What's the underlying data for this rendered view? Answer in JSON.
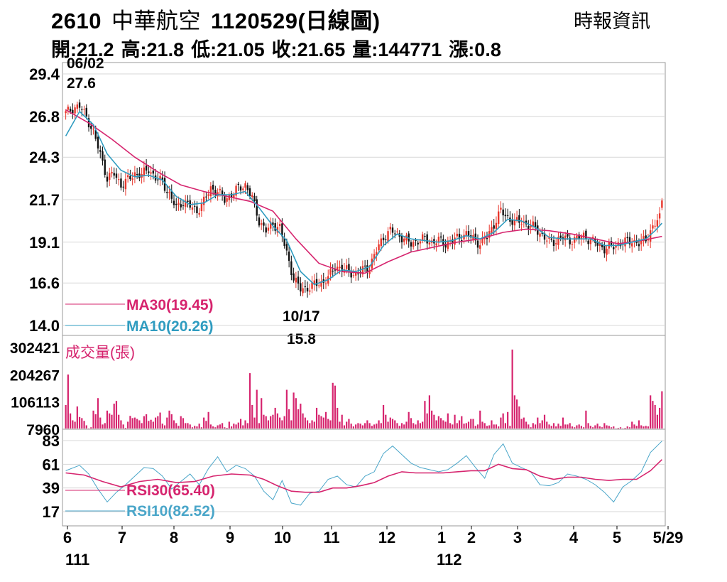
{
  "header": {
    "stock_code": "2610",
    "stock_name": "中華航空",
    "date_label": "1120529(日線圖)",
    "source": "時報資訊",
    "quote": [
      {
        "label": "開",
        "value": "21.2"
      },
      {
        "label": "高",
        "value": "21.8"
      },
      {
        "label": "低",
        "value": "21.05"
      },
      {
        "label": "收",
        "value": "21.65"
      },
      {
        "label": "量",
        "value": "144771"
      },
      {
        "label": "漲",
        "value": "0.8"
      }
    ]
  },
  "colors": {
    "up": "#e8352b",
    "down": "#111111",
    "ma30": "#d6246e",
    "ma10": "#2f9cc0",
    "volume": "#d6246e",
    "rsi30": "#d6246e",
    "rsi10": "#4aa6c9",
    "grid": "#d7d7d7"
  },
  "chart_data": [
    {
      "type": "candlestick",
      "yticks": [
        "29.4",
        "26.8",
        "24.3",
        "21.7",
        "19.1",
        "16.6",
        "14.0"
      ],
      "ylim": [
        14.0,
        29.4
      ],
      "annotations": [
        {
          "date": "06/02",
          "value": "27.6"
        },
        {
          "date": "10/17",
          "value": "15.8"
        }
      ],
      "legend": [
        {
          "name": "MA30",
          "value": "19.45",
          "label": "MA30(19.45)"
        },
        {
          "name": "MA10",
          "value": "20.26",
          "label": "MA10(20.26)"
        }
      ],
      "close_path": [
        [
          0,
          27.0
        ],
        [
          3,
          27.3
        ],
        [
          6,
          27.4
        ],
        [
          9,
          26.8
        ],
        [
          12,
          25.8
        ],
        [
          15,
          24.5
        ],
        [
          18,
          23.0
        ],
        [
          21,
          23.3
        ],
        [
          24,
          22.6
        ],
        [
          27,
          22.9
        ],
        [
          30,
          23.3
        ],
        [
          33,
          23.2
        ],
        [
          36,
          23.6
        ],
        [
          39,
          23.0
        ],
        [
          42,
          22.8
        ],
        [
          45,
          22.0
        ],
        [
          48,
          21.2
        ],
        [
          51,
          21.6
        ],
        [
          54,
          21.3
        ],
        [
          57,
          21.0
        ],
        [
          60,
          21.6
        ],
        [
          63,
          22.4
        ],
        [
          66,
          22.2
        ],
        [
          69,
          21.7
        ],
        [
          72,
          22.0
        ],
        [
          75,
          22.4
        ],
        [
          78,
          22.6
        ],
        [
          81,
          21.8
        ],
        [
          84,
          20.4
        ],
        [
          87,
          19.8
        ],
        [
          90,
          20.2
        ],
        [
          93,
          20.0
        ],
        [
          96,
          18.4
        ],
        [
          99,
          16.9
        ],
        [
          102,
          16.2
        ],
        [
          105,
          16.3
        ],
        [
          108,
          16.5
        ],
        [
          111,
          16.6
        ],
        [
          114,
          16.9
        ],
        [
          117,
          17.6
        ],
        [
          120,
          17.5
        ],
        [
          123,
          17.3
        ],
        [
          126,
          17.1
        ],
        [
          129,
          17.4
        ],
        [
          132,
          17.6
        ],
        [
          135,
          18.6
        ],
        [
          138,
          19.4
        ],
        [
          141,
          19.8
        ],
        [
          144,
          19.6
        ],
        [
          147,
          19.3
        ],
        [
          150,
          19.0
        ],
        [
          153,
          19.2
        ],
        [
          156,
          19.3
        ],
        [
          159,
          19.1
        ],
        [
          162,
          19.2
        ],
        [
          165,
          19.0
        ],
        [
          168,
          19.2
        ],
        [
          171,
          19.4
        ],
        [
          174,
          19.6
        ],
        [
          177,
          19.3
        ],
        [
          180,
          19.0
        ],
        [
          183,
          19.4
        ],
        [
          186,
          20.2
        ],
        [
          189,
          21.0
        ],
        [
          192,
          20.6
        ],
        [
          195,
          20.3
        ],
        [
          198,
          20.4
        ],
        [
          201,
          20.1
        ],
        [
          204,
          20.0
        ],
        [
          207,
          19.5
        ],
        [
          210,
          19.1
        ],
        [
          213,
          19.2
        ],
        [
          216,
          19.4
        ],
        [
          219,
          19.2
        ],
        [
          222,
          19.3
        ],
        [
          225,
          19.5
        ],
        [
          228,
          19.2
        ],
        [
          231,
          19.0
        ],
        [
          234,
          18.7
        ],
        [
          237,
          18.8
        ],
        [
          240,
          19.0
        ],
        [
          243,
          19.1
        ],
        [
          246,
          19.2
        ],
        [
          249,
          19.0
        ],
        [
          252,
          19.3
        ],
        [
          255,
          20.0
        ],
        [
          258,
          20.6
        ],
        [
          259,
          21.65
        ]
      ],
      "ma30_path": [
        [
          0,
          27.2
        ],
        [
          10,
          26.4
        ],
        [
          20,
          25.4
        ],
        [
          30,
          24.3
        ],
        [
          40,
          23.4
        ],
        [
          50,
          22.6
        ],
        [
          60,
          22.2
        ],
        [
          70,
          21.9
        ],
        [
          80,
          21.6
        ],
        [
          90,
          21.0
        ],
        [
          100,
          19.3
        ],
        [
          110,
          17.8
        ],
        [
          120,
          17.3
        ],
        [
          130,
          17.2
        ],
        [
          140,
          17.9
        ],
        [
          150,
          18.5
        ],
        [
          160,
          18.8
        ],
        [
          170,
          19.1
        ],
        [
          180,
          19.3
        ],
        [
          190,
          19.7
        ],
        [
          200,
          19.9
        ],
        [
          210,
          19.8
        ],
        [
          220,
          19.6
        ],
        [
          230,
          19.3
        ],
        [
          240,
          19.0
        ],
        [
          250,
          19.2
        ],
        [
          259,
          19.45
        ]
      ],
      "ma10_path": [
        [
          0,
          25.6
        ],
        [
          6,
          27.1
        ],
        [
          12,
          26.3
        ],
        [
          18,
          24.5
        ],
        [
          24,
          23.5
        ],
        [
          30,
          23.1
        ],
        [
          36,
          23.2
        ],
        [
          42,
          22.9
        ],
        [
          48,
          21.9
        ],
        [
          54,
          21.4
        ],
        [
          60,
          21.5
        ],
        [
          66,
          22.0
        ],
        [
          72,
          22.0
        ],
        [
          78,
          22.2
        ],
        [
          84,
          21.2
        ],
        [
          90,
          20.1
        ],
        [
          96,
          19.2
        ],
        [
          102,
          17.3
        ],
        [
          108,
          16.5
        ],
        [
          114,
          16.8
        ],
        [
          120,
          17.4
        ],
        [
          126,
          17.3
        ],
        [
          132,
          17.6
        ],
        [
          138,
          18.9
        ],
        [
          144,
          19.6
        ],
        [
          150,
          19.3
        ],
        [
          156,
          19.2
        ],
        [
          162,
          19.1
        ],
        [
          168,
          19.2
        ],
        [
          174,
          19.5
        ],
        [
          180,
          19.3
        ],
        [
          186,
          19.7
        ],
        [
          192,
          20.5
        ],
        [
          198,
          20.4
        ],
        [
          204,
          20.0
        ],
        [
          210,
          19.4
        ],
        [
          216,
          19.3
        ],
        [
          222,
          19.3
        ],
        [
          228,
          19.3
        ],
        [
          234,
          18.9
        ],
        [
          240,
          18.9
        ],
        [
          246,
          19.1
        ],
        [
          252,
          19.3
        ],
        [
          256,
          19.8
        ],
        [
          259,
          20.26
        ]
      ]
    },
    {
      "type": "bar",
      "label": "成交量(張)",
      "yticks": [
        "302421",
        "204267",
        "106113",
        "7960"
      ],
      "ylim": [
        7960,
        302421
      ],
      "values": [
        95000,
        205000,
        65000,
        40000,
        35000,
        90000,
        52000,
        48000,
        38000,
        22000,
        10000,
        15000,
        75000,
        62000,
        120000,
        50000,
        25000,
        30000,
        75000,
        65000,
        60000,
        100000,
        110000,
        60000,
        40000,
        25000,
        12000,
        35000,
        56000,
        48000,
        50000,
        45000,
        40000,
        30000,
        55000,
        62000,
        38000,
        42000,
        35000,
        50000,
        55000,
        68000,
        28000,
        22000,
        50000,
        75000,
        62000,
        40000,
        30000,
        20000,
        55000,
        48000,
        30000,
        30000,
        25000,
        15000,
        20000,
        18000,
        28000,
        15000,
        50000,
        38000,
        70000,
        25000,
        18000,
        15000,
        22000,
        25000,
        30000,
        15000,
        12000,
        35000,
        18000,
        28000,
        25000,
        32000,
        45000,
        22000,
        40000,
        30000,
        210000,
        95000,
        50000,
        150000,
        30000,
        120000,
        60000,
        55000,
        40000,
        55000,
        60000,
        85000,
        65000,
        50000,
        40000,
        55000,
        150000,
        80000,
        40000,
        140000,
        120000,
        80000,
        100000,
        65000,
        50000,
        40000,
        30000,
        40000,
        35000,
        85000,
        60000,
        55000,
        50000,
        70000,
        45000,
        40000,
        175000,
        165000,
        85000,
        35000,
        60000,
        22000,
        35000,
        45000,
        28000,
        18000,
        25000,
        30000,
        28000,
        22000,
        30000,
        40000,
        30000,
        20000,
        25000,
        28000,
        40000,
        30000,
        95000,
        60000,
        35000,
        50000,
        45000,
        40000,
        30000,
        20000,
        30000,
        25000,
        35000,
        70000,
        48000,
        30000,
        25000,
        40000,
        30000,
        35000,
        110000,
        65000,
        130000,
        75000,
        60000,
        40000,
        55000,
        48000,
        40000,
        35000,
        65000,
        30000,
        25000,
        60000,
        30000,
        40000,
        55000,
        28000,
        30000,
        35000,
        45000,
        45000,
        20000,
        25000,
        75000,
        35000,
        30000,
        20000,
        22000,
        40000,
        25000,
        25000,
        18000,
        50000,
        65000,
        30000,
        70000,
        20000,
        295000,
        130000,
        115000,
        90000,
        45000,
        50000,
        35000,
        25000,
        15000,
        30000,
        25000,
        50000,
        30000,
        40000,
        60000,
        35000,
        25000,
        20000,
        30000,
        18000,
        28000,
        20000,
        50000,
        25000,
        25000,
        30000,
        18000,
        15000,
        22000,
        25000,
        20000,
        15000,
        75000,
        30000,
        20000,
        15000,
        22000,
        28000,
        18000,
        15000,
        30000,
        22000,
        20000,
        15000,
        18000,
        10000,
        12000,
        15000,
        10000,
        12000,
        18000,
        15000,
        35000,
        25000,
        20000,
        40000,
        22000,
        18000,
        20000,
        18000,
        130000,
        110000,
        95000,
        60000,
        85000,
        144771
      ]
    },
    {
      "type": "line",
      "yticks": [
        "83",
        "61",
        "39",
        "17"
      ],
      "ylim": [
        17,
        83
      ],
      "legend": [
        {
          "name": "RSI30",
          "value": "65.40",
          "label": "RSI30(65.40)"
        },
        {
          "name": "RSI10",
          "value": "82.52",
          "label": "RSI10(82.52)"
        }
      ],
      "rsi30_path": [
        [
          0,
          53
        ],
        [
          8,
          51
        ],
        [
          16,
          45
        ],
        [
          24,
          40
        ],
        [
          32,
          45
        ],
        [
          40,
          47
        ],
        [
          48,
          44
        ],
        [
          56,
          45
        ],
        [
          64,
          50
        ],
        [
          72,
          52
        ],
        [
          80,
          51
        ],
        [
          86,
          47
        ],
        [
          92,
          41
        ],
        [
          98,
          36
        ],
        [
          104,
          35
        ],
        [
          110,
          35
        ],
        [
          116,
          39
        ],
        [
          122,
          39
        ],
        [
          128,
          41
        ],
        [
          134,
          44
        ],
        [
          140,
          50
        ],
        [
          146,
          54
        ],
        [
          152,
          53
        ],
        [
          158,
          53
        ],
        [
          164,
          53
        ],
        [
          170,
          54
        ],
        [
          176,
          55
        ],
        [
          182,
          55
        ],
        [
          188,
          61
        ],
        [
          194,
          57
        ],
        [
          200,
          56
        ],
        [
          206,
          50
        ],
        [
          212,
          47
        ],
        [
          218,
          49
        ],
        [
          224,
          49
        ],
        [
          230,
          47
        ],
        [
          236,
          46
        ],
        [
          242,
          47
        ],
        [
          248,
          47
        ],
        [
          254,
          55
        ],
        [
          259,
          65.4
        ]
      ],
      "rsi10_path": [
        [
          0,
          55
        ],
        [
          6,
          60
        ],
        [
          10,
          52
        ],
        [
          14,
          38
        ],
        [
          18,
          26
        ],
        [
          22,
          35
        ],
        [
          26,
          42
        ],
        [
          30,
          50
        ],
        [
          34,
          58
        ],
        [
          38,
          57
        ],
        [
          42,
          50
        ],
        [
          46,
          38
        ],
        [
          50,
          45
        ],
        [
          54,
          52
        ],
        [
          58,
          42
        ],
        [
          62,
          57
        ],
        [
          66,
          68
        ],
        [
          70,
          54
        ],
        [
          74,
          60
        ],
        [
          78,
          57
        ],
        [
          82,
          50
        ],
        [
          86,
          36
        ],
        [
          90,
          28
        ],
        [
          94,
          46
        ],
        [
          98,
          25
        ],
        [
          102,
          23
        ],
        [
          106,
          34
        ],
        [
          110,
          36
        ],
        [
          114,
          47
        ],
        [
          118,
          50
        ],
        [
          122,
          42
        ],
        [
          126,
          40
        ],
        [
          130,
          50
        ],
        [
          134,
          54
        ],
        [
          138,
          71
        ],
        [
          142,
          78
        ],
        [
          146,
          70
        ],
        [
          150,
          62
        ],
        [
          154,
          58
        ],
        [
          158,
          56
        ],
        [
          162,
          54
        ],
        [
          166,
          56
        ],
        [
          170,
          62
        ],
        [
          174,
          69
        ],
        [
          178,
          58
        ],
        [
          182,
          48
        ],
        [
          186,
          70
        ],
        [
          190,
          80
        ],
        [
          194,
          62
        ],
        [
          198,
          58
        ],
        [
          202,
          54
        ],
        [
          206,
          42
        ],
        [
          210,
          41
        ],
        [
          214,
          44
        ],
        [
          218,
          52
        ],
        [
          222,
          50
        ],
        [
          226,
          47
        ],
        [
          230,
          42
        ],
        [
          234,
          35
        ],
        [
          238,
          26
        ],
        [
          242,
          40
        ],
        [
          246,
          46
        ],
        [
          250,
          54
        ],
        [
          254,
          72
        ],
        [
          259,
          82.52
        ]
      ]
    }
  ],
  "x_axis": {
    "months": [
      "6",
      "7",
      "8",
      "9",
      "10",
      "11",
      "12",
      "1",
      "2",
      "3",
      "4",
      "5",
      "5/29"
    ],
    "years": [
      "111",
      "112"
    ]
  }
}
